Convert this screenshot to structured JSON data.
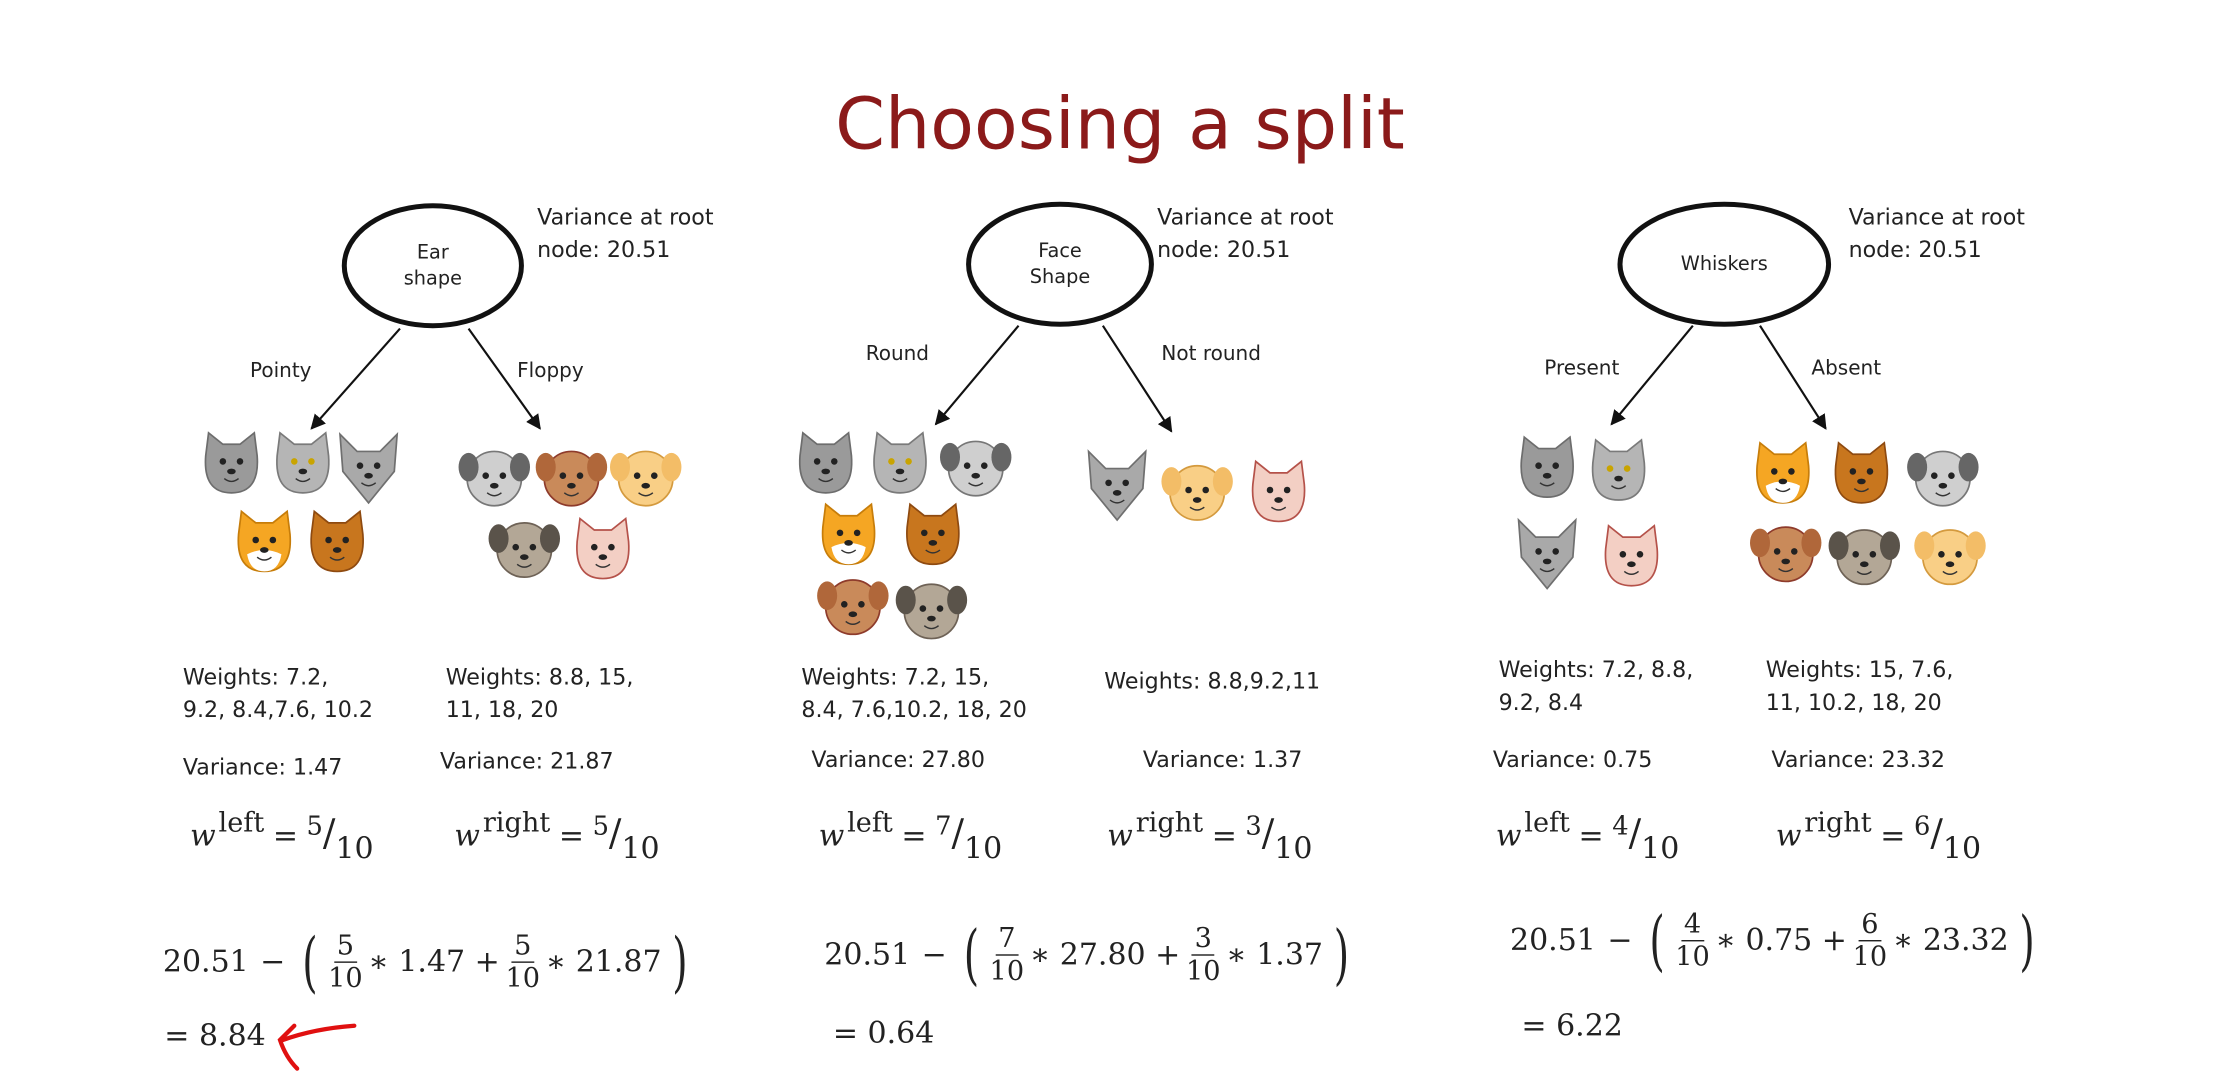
{
  "title": "Choosing a split",
  "colors": {
    "title": "#8b1a1a",
    "annotation_arrow": "#e01010"
  },
  "panels": [
    {
      "node": [
        "Ear",
        "shape"
      ],
      "root_variance": [
        "Variance at root",
        "node: 20.51"
      ],
      "left_branch": "Pointy",
      "right_branch": "Floppy",
      "left_animals": [
        "gray-cat",
        "gray-cat-yellow-eyes",
        "gray-wolf-cat",
        "orange-white-cat",
        "brown-cat"
      ],
      "right_animals": [
        "gray-dog",
        "brown-dog",
        "tan-dog",
        "pug-dog",
        "pink-cat"
      ],
      "left_weights": [
        "Weights: 7.2,",
        "9.2, 8.4,7.6, 10.2"
      ],
      "right_weights": [
        "Weights: 8.8, 15,",
        "11, 18, 20"
      ],
      "left_variance": "Variance: 1.47",
      "right_variance": "Variance: 21.87",
      "w_left": {
        "w": "w",
        "sup": "left",
        "eq": "=",
        "num": "5",
        "den": "10"
      },
      "w_right": {
        "w": "w",
        "sup": "right",
        "eq": "=",
        "num": "5",
        "den": "10"
      },
      "equation": {
        "root": "20.51",
        "minus": "−",
        "f1n": "5",
        "f1d": "10",
        "v1": "∗ 1.47 +",
        "f2n": "5",
        "f2d": "10",
        "v2": "∗ 21.87"
      },
      "result": "= 8.84",
      "highlighted": true
    },
    {
      "node": [
        "Face",
        "Shape"
      ],
      "root_variance": [
        "Variance at root",
        "node: 20.51"
      ],
      "left_branch": "Round",
      "right_branch": "Not round",
      "left_animals": [
        "gray-cat",
        "gray-cat-yellow-eyes",
        "gray-dog",
        "orange-white-cat",
        "brown-cat",
        "brown-dog",
        "pug-dog"
      ],
      "right_animals": [
        "gray-wolf-cat",
        "tan-dog",
        "pink-cat"
      ],
      "left_weights": [
        "Weights: 7.2, 15,",
        "8.4, 7.6,10.2, 18, 20"
      ],
      "right_weights": [
        "Weights: 8.8,9.2,11"
      ],
      "left_variance": "Variance: 27.80",
      "right_variance": "Variance: 1.37",
      "w_left": {
        "w": "w",
        "sup": "left",
        "eq": "=",
        "num": "7",
        "den": "10"
      },
      "w_right": {
        "w": "w",
        "sup": "right",
        "eq": "=",
        "num": "3",
        "den": "10"
      },
      "equation": {
        "root": "20.51",
        "minus": "−",
        "f1n": "7",
        "f1d": "10",
        "v1": "∗ 27.80 +",
        "f2n": "3",
        "f2d": "10",
        "v2": "∗ 1.37"
      },
      "result": "= 0.64",
      "highlighted": false
    },
    {
      "node": [
        "Whiskers"
      ],
      "root_variance": [
        "Variance at root",
        "node: 20.51"
      ],
      "left_branch": "Present",
      "right_branch": "Absent",
      "left_animals": [
        "gray-cat",
        "gray-cat-yellow-eyes",
        "gray-wolf-cat",
        "pink-cat"
      ],
      "right_animals": [
        "orange-white-cat",
        "brown-cat",
        "gray-dog",
        "brown-dog",
        "pug-dog",
        "tan-dog"
      ],
      "left_weights": [
        "Weights: 7.2, 8.8,",
        "9.2, 8.4"
      ],
      "right_weights": [
        "Weights: 15, 7.6,",
        "11, 10.2, 18, 20"
      ],
      "left_variance": "Variance: 0.75",
      "right_variance": "Variance: 23.32",
      "w_left": {
        "w": "w",
        "sup": "left",
        "eq": "=",
        "num": "4",
        "den": "10"
      },
      "w_right": {
        "w": "w",
        "sup": "right",
        "eq": "=",
        "num": "6",
        "den": "10"
      },
      "equation": {
        "root": "20.51",
        "minus": "−",
        "f1n": "4",
        "f1d": "10",
        "v1": "∗ 0.75 +",
        "f2n": "6",
        "f2d": "10",
        "v2": "∗ 23.32"
      },
      "result": "= 6.22",
      "highlighted": false
    }
  ]
}
